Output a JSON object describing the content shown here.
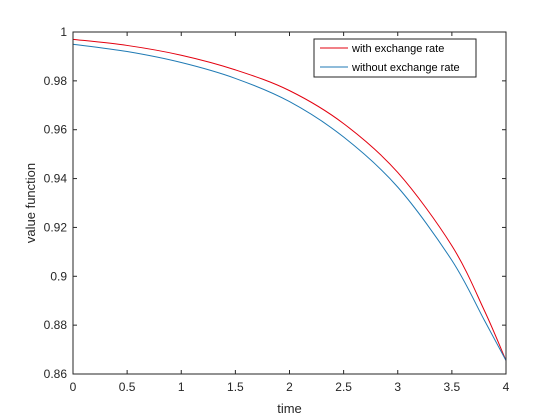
{
  "chart_data": {
    "type": "line",
    "title": "",
    "xlabel": "time",
    "ylabel": "value function",
    "xlim": [
      0,
      4
    ],
    "ylim": [
      0.86,
      1
    ],
    "xticks": [
      0,
      0.5,
      1,
      1.5,
      2,
      2.5,
      3,
      3.5,
      4
    ],
    "yticks": [
      0.86,
      0.88,
      0.9,
      0.92,
      0.94,
      0.96,
      0.98,
      1
    ],
    "xtick_labels": [
      "0",
      "0.5",
      "1",
      "1.5",
      "2",
      "2.5",
      "3",
      "3.5",
      "4"
    ],
    "ytick_labels": [
      "0.86",
      "0.88",
      "0.9",
      "0.92",
      "0.94",
      "0.96",
      "0.98",
      "1"
    ],
    "grid": false,
    "legend_position": "top-right",
    "x": [
      0,
      0.5,
      1,
      1.5,
      2,
      2.5,
      3,
      3.5,
      3.8,
      4
    ],
    "series": [
      {
        "name": "with exchange rate",
        "color": "#e3000f",
        "values": [
          0.997,
          0.9945,
          0.9905,
          0.9845,
          0.976,
          0.9625,
          0.9425,
          0.9125,
          0.886,
          0.8655
        ]
      },
      {
        "name": "without exchange rate",
        "color": "#1f7ab4",
        "values": [
          0.995,
          0.992,
          0.9875,
          0.981,
          0.9715,
          0.957,
          0.9365,
          0.9065,
          0.882,
          0.8655
        ]
      }
    ]
  }
}
